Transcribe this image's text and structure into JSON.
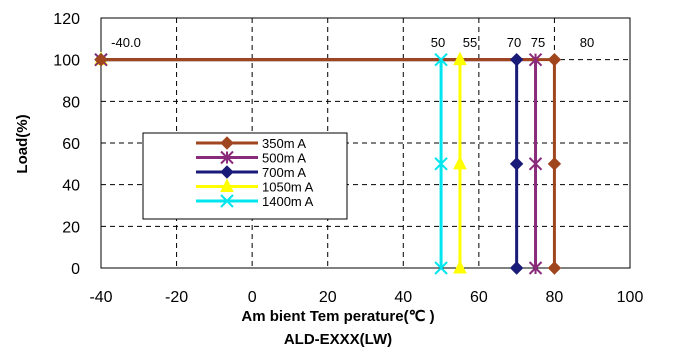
{
  "chart_data": {
    "type": "line",
    "title": "",
    "xlabel": "Am bient Tem perature(℃ )",
    "ylabel": "Load(%)",
    "subtitle": "ALD-EXXX(LW)",
    "xlim": [
      -40,
      100
    ],
    "ylim": [
      0,
      120
    ],
    "xticks": [
      "-40",
      "-20",
      "0",
      "20",
      "40",
      "60",
      "80",
      "100"
    ],
    "yticks": [
      "0",
      "20",
      "40",
      "60",
      "80",
      "100",
      "120"
    ],
    "grid": true,
    "legend_position": "center-left",
    "annotations": [
      {
        "text": "-40.0",
        "x": -40,
        "y": 100
      },
      {
        "text": "50",
        "x": 50,
        "y": 100
      },
      {
        "text": "55",
        "x": 55,
        "y": 100
      },
      {
        "text": "70",
        "x": 70,
        "y": 100
      },
      {
        "text": "75",
        "x": 75,
        "y": 100
      },
      {
        "text": "80",
        "x": 80,
        "y": 100
      }
    ],
    "series": [
      {
        "name": "350m A",
        "color": "#a0461e",
        "marker": "diamond",
        "points": [
          [
            -40,
            100
          ],
          [
            80,
            100
          ],
          [
            80,
            50
          ],
          [
            80,
            0
          ]
        ]
      },
      {
        "name": "500m A",
        "color": "#8a2a7a",
        "marker": "star",
        "points": [
          [
            -40,
            100
          ],
          [
            75,
            100
          ],
          [
            75,
            50
          ],
          [
            75,
            0
          ]
        ]
      },
      {
        "name": "700m A",
        "color": "#1a1a78",
        "marker": "diamond",
        "points": [
          [
            -40,
            100
          ],
          [
            70,
            100
          ],
          [
            70,
            50
          ],
          [
            70,
            0
          ]
        ]
      },
      {
        "name": "1050m A",
        "color": "#ffff00",
        "marker": "triangle",
        "points": [
          [
            -40,
            100
          ],
          [
            55,
            100
          ],
          [
            55,
            50
          ],
          [
            55,
            0
          ]
        ]
      },
      {
        "name": "1400m A",
        "color": "#00e5ee",
        "marker": "x",
        "points": [
          [
            -40,
            100
          ],
          [
            50,
            100
          ],
          [
            50,
            50
          ],
          [
            50,
            0
          ]
        ]
      }
    ]
  }
}
